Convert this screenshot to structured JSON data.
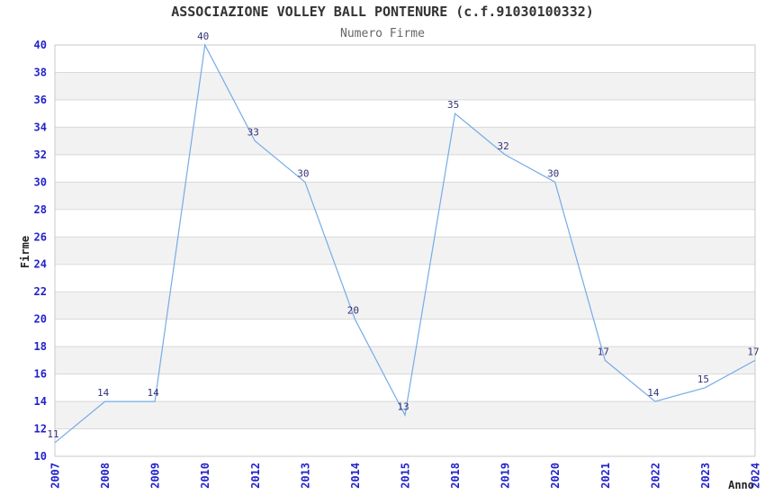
{
  "chart_data": {
    "type": "line",
    "title": "ASSOCIAZIONE VOLLEY BALL PONTENURE (c.f.91030100332)",
    "subtitle": "Numero Firme",
    "xlabel": "Anno",
    "ylabel": "Firme",
    "x": [
      "2007",
      "2008",
      "2009",
      "2010",
      "2012",
      "2013",
      "2014",
      "2015",
      "2018",
      "2019",
      "2020",
      "2021",
      "2022",
      "2023",
      "2024"
    ],
    "series": [
      {
        "name": "Numero Firme",
        "values": [
          11,
          14,
          14,
          40,
          33,
          30,
          20,
          13,
          35,
          32,
          30,
          17,
          14,
          15,
          17
        ]
      }
    ],
    "data_labels": [
      11,
      14,
      14,
      40,
      33,
      30,
      20,
      13,
      35,
      32,
      30,
      17,
      14,
      15,
      17
    ],
    "ylim": [
      10,
      40
    ],
    "ytick_step": 2,
    "grid": "horizontal-bands",
    "legend": "none",
    "colors": {
      "line": "#76abe8",
      "tick_label": "#2222cc",
      "data_label": "#333377",
      "band": "#f2f2f2",
      "gridline": "#d9d9d9",
      "border": "#c9c9c9",
      "title": "#333333",
      "subtitle": "#666666",
      "axis_title": "#222222",
      "background": "#ffffff"
    }
  }
}
